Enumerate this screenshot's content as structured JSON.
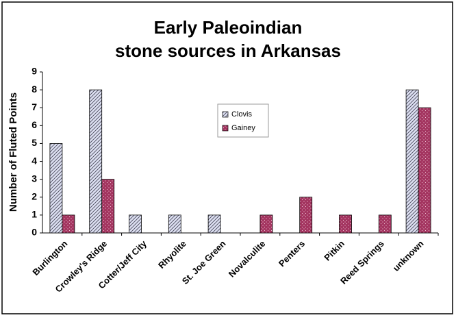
{
  "chart_data": {
    "type": "bar",
    "title": [
      "Early Paleoindian",
      "stone sources in Arkansas"
    ],
    "y_label": "Number of Fluted Points",
    "categories": [
      "Burlington",
      "Crowley's Ridge",
      "Cotter/Jeff City",
      "Rhyolite",
      "St. Joe Green",
      "Novalculite",
      "Penters",
      "Pitkin",
      "Reed Springs",
      "unknown"
    ],
    "series": [
      {
        "name": "Clovis",
        "color": "#dde0f2",
        "pattern": "hatch",
        "values": [
          5,
          8,
          1,
          1,
          1,
          0,
          0,
          0,
          0,
          8
        ]
      },
      {
        "name": "Gainey",
        "color": "#a3345f",
        "pattern": "dots",
        "values": [
          1,
          3,
          0,
          0,
          0,
          1,
          2,
          1,
          1,
          7
        ]
      }
    ],
    "ylim": [
      0,
      9
    ],
    "yticks": [
      0,
      1,
      2,
      3,
      4,
      5,
      6,
      7,
      8,
      9
    ],
    "grid": false
  }
}
